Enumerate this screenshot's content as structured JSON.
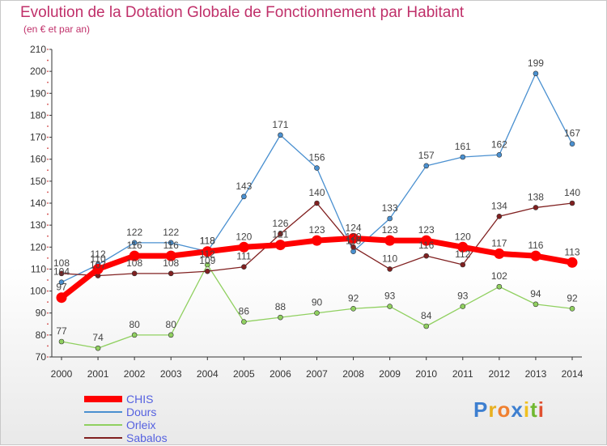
{
  "header": {
    "title": "Evolution de la Dotation Globale de Fonctionnement par Habitant",
    "subtitle": "(en € et par an)"
  },
  "brand": {
    "letters": [
      "P",
      "r",
      "o",
      "x",
      "i",
      "t",
      "i"
    ],
    "colors": [
      "#3d7fd0",
      "#e8b020",
      "#f08030",
      "#3d7fd0",
      "#f0c020",
      "#70b830",
      "#e05030"
    ]
  },
  "chart_data": {
    "type": "line",
    "x": [
      2000,
      2001,
      2002,
      2003,
      2004,
      2005,
      2006,
      2007,
      2008,
      2009,
      2010,
      2011,
      2012,
      2013,
      2014
    ],
    "ylim": [
      70,
      210
    ],
    "yticks": [
      70,
      80,
      90,
      100,
      110,
      120,
      130,
      140,
      150,
      160,
      170,
      180,
      190,
      200,
      210
    ],
    "grid": false,
    "legend_position": "bottom-left",
    "series": [
      {
        "name": "Dours",
        "color": "#4a90d0",
        "values": [
          104,
          112,
          122,
          122,
          118,
          143,
          171,
          156,
          118,
          133,
          157,
          161,
          162,
          199,
          167
        ]
      },
      {
        "name": "Orleix",
        "color": "#90d060",
        "values": [
          77,
          74,
          80,
          80,
          112,
          86,
          88,
          90,
          92,
          93,
          84,
          93,
          102,
          94,
          92
        ]
      },
      {
        "name": "Sabalos",
        "color": "#802020",
        "values": [
          108,
          107,
          108,
          108,
          109,
          111,
          126,
          140,
          120,
          110,
          116,
          112,
          134,
          138,
          140
        ]
      },
      {
        "name": "CHIS",
        "color": "#ff0000",
        "values": [
          97,
          110,
          116,
          116,
          118,
          120,
          121,
          123,
          124,
          123,
          123,
          120,
          117,
          116,
          113
        ]
      }
    ],
    "legend_order": [
      "CHIS",
      "Dours",
      "Orleix",
      "Sabalos"
    ]
  }
}
